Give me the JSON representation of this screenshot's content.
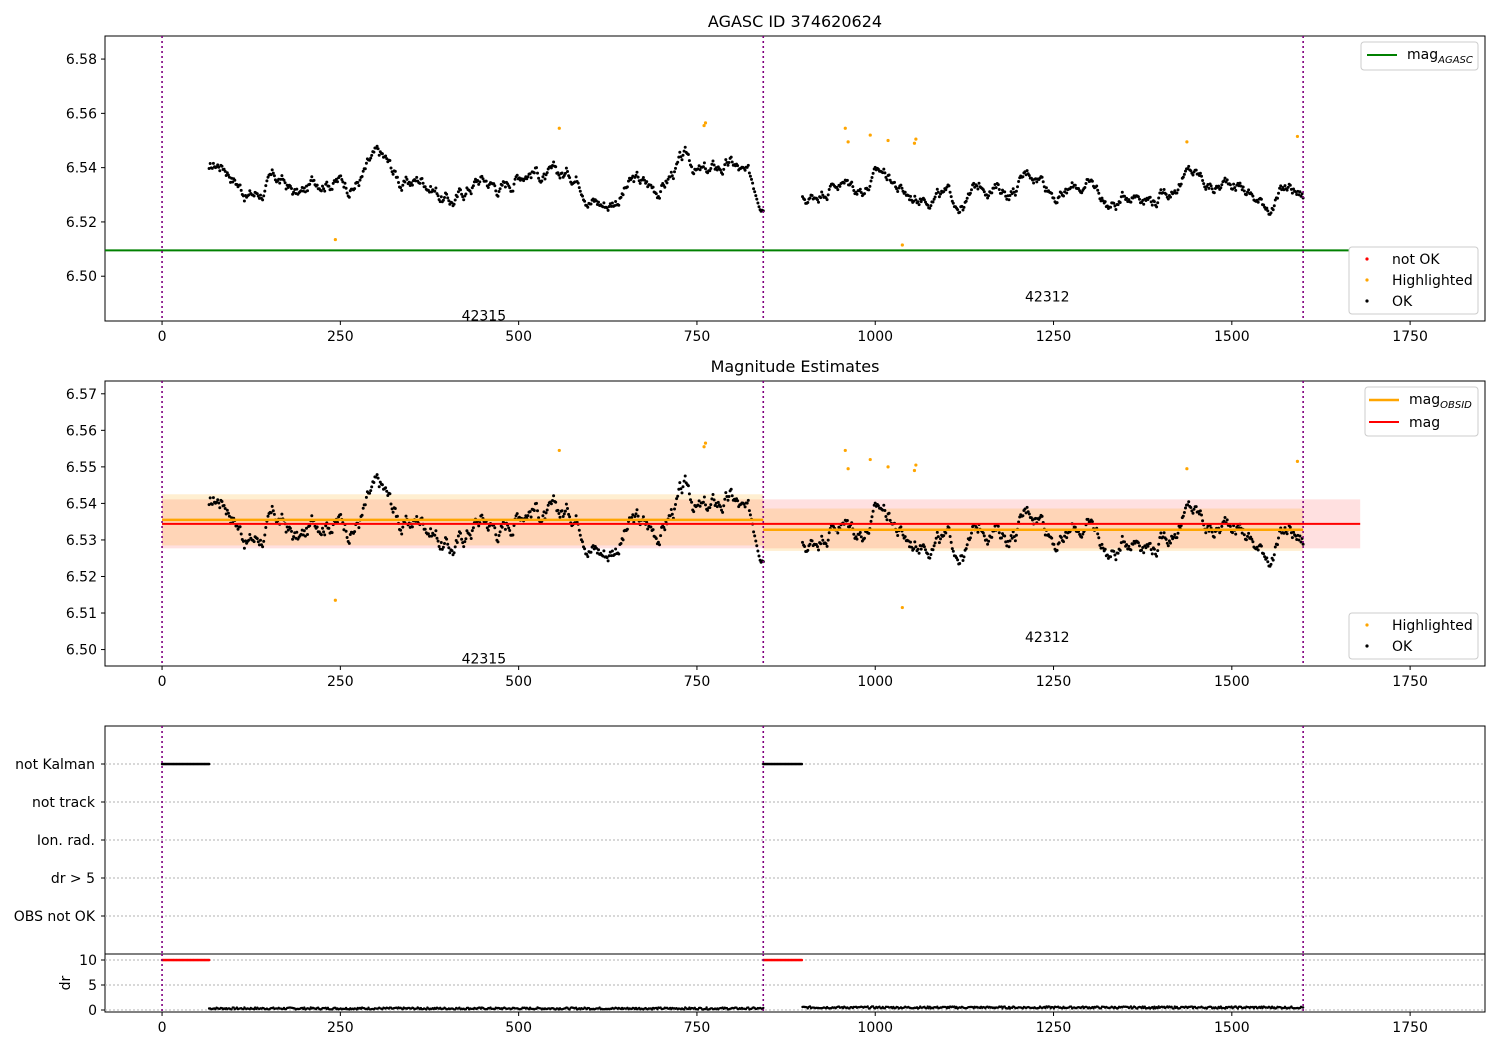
{
  "chart_data": [
    {
      "type": "scatter",
      "title": "AGASC ID 374620624",
      "xlim": [
        -80,
        1855
      ],
      "ylim": [
        6.4835,
        6.5885
      ],
      "x_ticks": [
        0,
        250,
        500,
        750,
        1000,
        1250,
        1500,
        1750
      ],
      "y_ticks": [
        6.5,
        6.52,
        6.54,
        6.56,
        6.58
      ],
      "y_tick_labels": [
        "6.50",
        "6.52",
        "6.54",
        "6.56",
        "6.58"
      ],
      "grid": false,
      "legends": [
        {
          "placement": "top-right",
          "entries": [
            {
              "label": "mag",
              "subscript": "AGASC",
              "color": "#008000",
              "kind": "line"
            }
          ]
        },
        {
          "placement": "bottom-right",
          "entries": [
            {
              "label": "not OK",
              "color": "#ff0000",
              "kind": "marker"
            },
            {
              "label": "Highlighted",
              "color": "#ffa500",
              "kind": "marker"
            },
            {
              "label": "OK",
              "color": "#000000",
              "kind": "marker"
            }
          ]
        }
      ],
      "obsid_boundaries": [
        0,
        843,
        1600
      ],
      "obsid_labels": [
        {
          "text": "42315",
          "x": 420,
          "y": 6.4855
        },
        {
          "text": "42312",
          "x": 1210,
          "y": 6.4925
        }
      ],
      "mag_agasc": {
        "value": 6.5095,
        "x_range": [
          -80,
          1680
        ],
        "color": "#008000"
      },
      "series": [
        {
          "name": "OK",
          "color": "#000000",
          "segments": [
            {
              "x_start": 66,
              "x_end": 843,
              "baseline": 6.5355,
              "amplitude": 0.0125
            },
            {
              "x_start": 898,
              "x_end": 1600,
              "baseline": 6.5325,
              "amplitude": 0.011
            }
          ]
        },
        {
          "name": "Highlighted",
          "color": "#ffa500",
          "points": [
            [
              243,
              6.5135
            ],
            [
              557,
              6.5545
            ],
            [
              760,
              6.5555
            ],
            [
              762,
              6.5565
            ],
            [
              958,
              6.5545
            ],
            [
              962,
              6.5495
            ],
            [
              993,
              6.552
            ],
            [
              1018,
              6.55
            ],
            [
              1038,
              6.5115
            ],
            [
              1055,
              6.549
            ],
            [
              1057,
              6.5505
            ],
            [
              1437,
              6.5495
            ],
            [
              1592,
              6.5515
            ]
          ]
        }
      ]
    },
    {
      "type": "scatter",
      "title": "Magnitude Estimates",
      "xlim": [
        -80,
        1855
      ],
      "ylim": [
        6.4955,
        6.5735
      ],
      "x_ticks": [
        0,
        250,
        500,
        750,
        1000,
        1250,
        1500,
        1750
      ],
      "y_ticks": [
        6.5,
        6.51,
        6.52,
        6.53,
        6.54,
        6.55,
        6.56,
        6.57
      ],
      "y_tick_labels": [
        "6.50",
        "6.51",
        "6.52",
        "6.53",
        "6.54",
        "6.55",
        "6.56",
        "6.57"
      ],
      "grid": false,
      "legends": [
        {
          "placement": "top-right",
          "entries": [
            {
              "label": "mag",
              "subscript": "OBSID",
              "color": "#ffa500",
              "kind": "line"
            },
            {
              "label": "mag",
              "subscript": "",
              "color": "#ff0000",
              "kind": "line"
            }
          ]
        },
        {
          "placement": "bottom-right",
          "entries": [
            {
              "label": "Highlighted",
              "color": "#ffa500",
              "kind": "marker"
            },
            {
              "label": "OK",
              "color": "#000000",
              "kind": "marker"
            }
          ]
        }
      ],
      "obsid_boundaries": [
        0,
        843,
        1600
      ],
      "obsid_labels": [
        {
          "text": "42315",
          "x": 420,
          "y": 6.4975
        },
        {
          "text": "42312",
          "x": 1210,
          "y": 6.5035
        }
      ],
      "mag": {
        "value": 6.5344,
        "band": [
          6.5277,
          6.5411
        ],
        "x_range": [
          0,
          1680
        ],
        "color": "#ff0000"
      },
      "mag_obsid": [
        {
          "x_range": [
            0,
            843
          ],
          "value": 6.5355,
          "band": [
            6.5285,
            6.5425
          ]
        },
        {
          "x_range": [
            843,
            1600
          ],
          "value": 6.5328,
          "band": [
            6.527,
            6.5386
          ]
        }
      ],
      "series": [
        {
          "name": "OK",
          "color": "#000000",
          "segments": [
            {
              "x_start": 66,
              "x_end": 843,
              "baseline": 6.5355,
              "amplitude": 0.0125
            },
            {
              "x_start": 898,
              "x_end": 1600,
              "baseline": 6.5325,
              "amplitude": 0.011
            }
          ]
        },
        {
          "name": "Highlighted",
          "color": "#ffa500",
          "points": [
            [
              243,
              6.5135
            ],
            [
              557,
              6.5545
            ],
            [
              760,
              6.5555
            ],
            [
              762,
              6.5565
            ],
            [
              958,
              6.5545
            ],
            [
              962,
              6.5495
            ],
            [
              993,
              6.552
            ],
            [
              1018,
              6.55
            ],
            [
              1038,
              6.5115
            ],
            [
              1055,
              6.549
            ],
            [
              1057,
              6.5505
            ],
            [
              1437,
              6.5495
            ],
            [
              1592,
              6.5515
            ]
          ]
        }
      ]
    },
    {
      "type": "scatter",
      "title": "",
      "xlim": [
        -80,
        1855
      ],
      "flag_labels": [
        "not Kalman",
        "not track",
        "Ion. rad.",
        "dr > 5",
        "OBS not OK"
      ],
      "grid": true,
      "obsid_boundaries": [
        0,
        843,
        1600
      ],
      "flags": {
        "not Kalman": [
          [
            0,
            66
          ],
          [
            843,
            898
          ]
        ],
        "not track": [],
        "Ion. rad.": [],
        "dr > 5": [],
        "OBS not OK": []
      }
    },
    {
      "type": "scatter",
      "title": "",
      "ylabel": "dr",
      "xlim": [
        -80,
        1855
      ],
      "ylim": [
        -0.4,
        11.2
      ],
      "x_ticks": [
        0,
        250,
        500,
        750,
        1000,
        1250,
        1500,
        1750
      ],
      "y_ticks": [
        0,
        5,
        10
      ],
      "y_tick_labels": [
        "0",
        "5",
        "10"
      ],
      "grid": true,
      "obsid_boundaries": [
        0,
        843,
        1600
      ],
      "dr_capped": {
        "value": 10,
        "color": "#ff0000",
        "x_ranges": [
          [
            0,
            66
          ],
          [
            843,
            898
          ]
        ]
      },
      "dr_ok": {
        "color": "#000000",
        "segments": [
          {
            "x_start": 66,
            "x_end": 843,
            "level": 0.3
          },
          {
            "x_start": 898,
            "x_end": 1600,
            "level": 0.5
          }
        ]
      }
    }
  ]
}
